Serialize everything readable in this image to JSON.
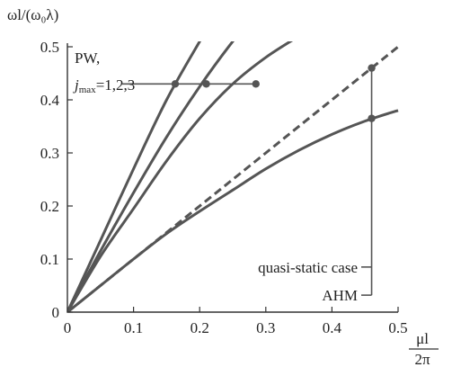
{
  "chart_data": {
    "type": "line",
    "ylabel": "ωl/(ω₀λ)",
    "xlabel_num": "μl",
    "xlabel_den": "2π",
    "xlim": [
      0,
      0.5
    ],
    "ylim": [
      0,
      0.5
    ],
    "xticks": [
      "0",
      "0.1",
      "0.2",
      "0.3",
      "0.4",
      "0.5"
    ],
    "yticks": [
      "0",
      "0.1",
      "0.2",
      "0.3",
      "0.4",
      "0.5"
    ],
    "grid": false,
    "series": [
      {
        "style": "solid",
        "x": [
          0,
          0.05,
          0.1,
          0.15,
          0.2,
          0.215
        ],
        "y": [
          0,
          0.135,
          0.27,
          0.4,
          0.51,
          0.54
        ]
      },
      {
        "style": "solid",
        "x": [
          0,
          0.05,
          0.1,
          0.15,
          0.2,
          0.25,
          0.275
        ],
        "y": [
          0,
          0.115,
          0.225,
          0.33,
          0.425,
          0.51,
          0.545
        ]
      },
      {
        "style": "solid",
        "x": [
          0,
          0.05,
          0.1,
          0.15,
          0.2,
          0.25,
          0.3,
          0.35
        ],
        "y": [
          0,
          0.105,
          0.195,
          0.285,
          0.365,
          0.43,
          0.48,
          0.52
        ]
      },
      {
        "style": "solid",
        "x": [
          0,
          0.05,
          0.1,
          0.15,
          0.2,
          0.25,
          0.3,
          0.35,
          0.4,
          0.45,
          0.5
        ],
        "y": [
          0,
          0.05,
          0.1,
          0.148,
          0.19,
          0.23,
          0.27,
          0.305,
          0.335,
          0.36,
          0.38
        ]
      },
      {
        "style": "dashed",
        "x": [
          0,
          0.5
        ],
        "y": [
          0,
          0.5
        ]
      }
    ],
    "annotations": {
      "pw_line1": "PW,",
      "pw_j": "j",
      "pw_sub": "max",
      "pw_values": "=1,2,3",
      "quasi": "quasi-static case",
      "ahm": "AHM"
    },
    "markers": {
      "pw_y": 0.43,
      "pw_x": [
        0.163,
        0.21,
        0.285
      ],
      "pw_label_x": 0.083,
      "right_x": 0.46,
      "right_y": [
        0.46,
        0.365
      ]
    },
    "leaders": {
      "quasi_y": 0.085,
      "ahm_y": 0.032
    }
  }
}
